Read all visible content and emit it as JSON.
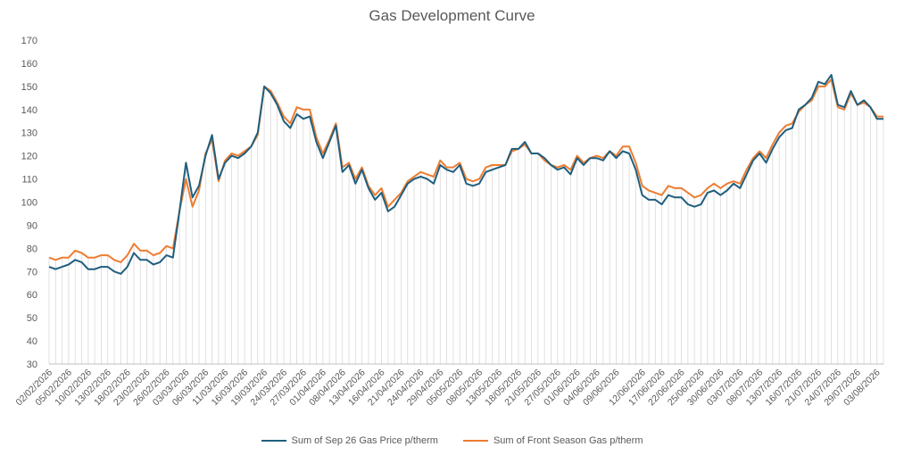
{
  "chart_data": {
    "type": "line",
    "title": "Gas Development Curve",
    "ylim": [
      30,
      170
    ],
    "yticks": [
      30,
      40,
      50,
      60,
      70,
      80,
      90,
      100,
      110,
      120,
      130,
      140,
      150,
      160,
      170
    ],
    "x_tick_labels": [
      "02/02/2026",
      "05/02/2026",
      "10/02/2026",
      "13/02/2026",
      "18/02/2026",
      "23/02/2026",
      "26/02/2026",
      "03/03/2026",
      "06/03/2026",
      "11/03/2026",
      "16/03/2026",
      "19/03/2026",
      "24/03/2026",
      "27/03/2026",
      "01/04/2026",
      "08/04/2026",
      "13/04/2026",
      "16/04/2026",
      "21/04/2026",
      "24/04/2026",
      "29/04/2026",
      "05/05/2026",
      "08/05/2026",
      "13/05/2026",
      "18/05/2026",
      "21/05/2026",
      "27/05/2026",
      "01/06/2026",
      "04/06/2026",
      "09/06/2026",
      "12/06/2026",
      "17/06/2026",
      "22/06/2026",
      "25/06/2026",
      "30/06/2026",
      "03/07/2026",
      "08/07/2026",
      "13/07/2026",
      "16/07/2026",
      "21/07/2026",
      "24/07/2026",
      "29/07/2026",
      "03/08/2026"
    ],
    "series": [
      {
        "name": "Sum of Sep 26 Gas Price p/therm",
        "color": "#1f5f7f",
        "values": [
          72,
          71,
          72,
          73,
          75,
          74,
          71,
          71,
          72,
          72,
          70,
          69,
          72,
          78,
          75,
          75,
          73,
          74,
          77,
          76,
          96,
          117,
          102,
          107,
          120,
          129,
          110,
          117,
          120,
          119,
          121,
          124,
          130,
          150,
          147,
          142,
          135,
          132,
          138,
          136,
          137,
          126,
          119,
          126,
          133,
          113,
          116,
          108,
          114,
          106,
          101,
          104,
          96,
          98,
          103,
          108,
          110,
          111,
          110,
          108,
          116,
          114,
          113,
          116,
          108,
          107,
          108,
          113,
          114,
          115,
          116,
          123,
          123,
          126,
          121,
          121,
          119,
          116,
          114,
          115,
          112,
          119,
          116,
          119,
          119,
          118,
          122,
          119,
          122,
          121,
          114,
          103,
          101,
          101,
          99,
          103,
          102,
          102,
          99,
          98,
          99,
          104,
          105,
          103,
          105,
          108,
          106,
          112,
          118,
          121,
          117,
          123,
          128,
          131,
          132,
          140,
          142,
          145,
          152,
          151,
          155,
          142,
          141,
          148,
          142,
          144,
          141,
          136,
          136
        ]
      },
      {
        "name": "Sum of Front Season Gas p/therm",
        "color": "#ed7d31",
        "values": [
          76,
          75,
          76,
          76,
          79,
          78,
          76,
          76,
          77,
          77,
          75,
          74,
          77,
          82,
          79,
          79,
          77,
          78,
          81,
          80,
          96,
          110,
          98,
          105,
          121,
          127,
          109,
          118,
          121,
          120,
          122,
          124,
          129,
          150,
          148,
          143,
          137,
          134,
          141,
          140,
          140,
          128,
          121,
          127,
          134,
          115,
          117,
          110,
          115,
          107,
          103,
          106,
          98,
          101,
          104,
          109,
          111,
          113,
          112,
          111,
          118,
          115,
          115,
          117,
          110,
          109,
          110,
          115,
          116,
          116,
          116,
          122,
          123,
          125,
          121,
          121,
          118,
          116,
          115,
          116,
          114,
          120,
          117,
          119,
          120,
          119,
          122,
          120,
          124,
          124,
          117,
          107,
          105,
          104,
          103,
          107,
          106,
          106,
          104,
          102,
          103,
          106,
          108,
          106,
          108,
          109,
          108,
          114,
          119,
          122,
          119,
          125,
          130,
          133,
          134,
          139,
          142,
          144,
          150,
          150,
          153,
          141,
          140,
          147,
          142,
          143,
          141,
          137,
          137
        ]
      }
    ],
    "legend_position": "bottom",
    "grid": true
  }
}
